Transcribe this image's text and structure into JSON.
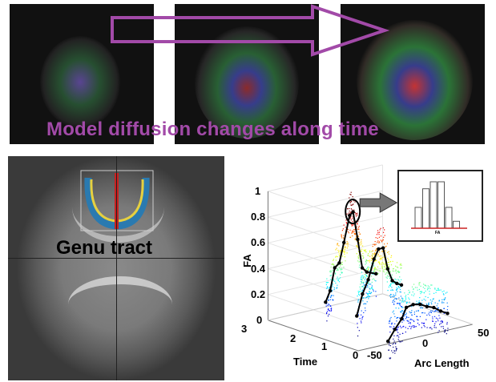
{
  "title": "Model diffusion changes along time",
  "mri": {
    "label": "Genu tract"
  },
  "colors": {
    "accent": "#a24aa8",
    "curve": "#000000",
    "inset_axis": "#cc2222"
  },
  "chart_data": {
    "type": "scatter",
    "zlabel": "FA",
    "xlabel": "Arc Length",
    "ylabel": "Time",
    "zticks": [
      "0",
      "0.2",
      "0.4",
      "0.6",
      "0.8",
      "1"
    ],
    "xticks": [
      "-50",
      "0",
      "50"
    ],
    "yticks": [
      "0",
      "1",
      "2",
      "3"
    ],
    "zlim": [
      0,
      1
    ],
    "xlim": [
      -50,
      50
    ],
    "ylim": [
      0,
      3
    ],
    "series": [
      {
        "time": 2,
        "arc": [
          -26,
          -22,
          -18,
          -14,
          -10,
          -5,
          -2,
          2,
          6,
          10,
          18
        ],
        "fa": [
          0.17,
          0.25,
          0.42,
          0.45,
          0.6,
          0.8,
          0.82,
          0.6,
          0.37,
          0.33,
          0.3
        ]
      },
      {
        "time": 1,
        "arc": [
          -25,
          -20,
          -15,
          -10,
          -6,
          -2,
          2,
          6,
          10,
          14
        ],
        "fa": [
          0.14,
          0.3,
          0.4,
          0.55,
          0.62,
          0.62,
          0.45,
          0.35,
          0.32,
          0.3
        ]
      },
      {
        "time": 0,
        "arc": [
          -24,
          -18,
          -12,
          -8,
          -2,
          4,
          10,
          16,
          22,
          28
        ],
        "fa": [
          0.02,
          0.1,
          0.17,
          0.25,
          0.26,
          0.25,
          0.22,
          0.2,
          0.16,
          0.13
        ]
      }
    ],
    "inset": {
      "label": "FA",
      "bars": [
        0.45,
        0.85,
        1,
        1,
        0.45,
        0.15
      ]
    }
  }
}
